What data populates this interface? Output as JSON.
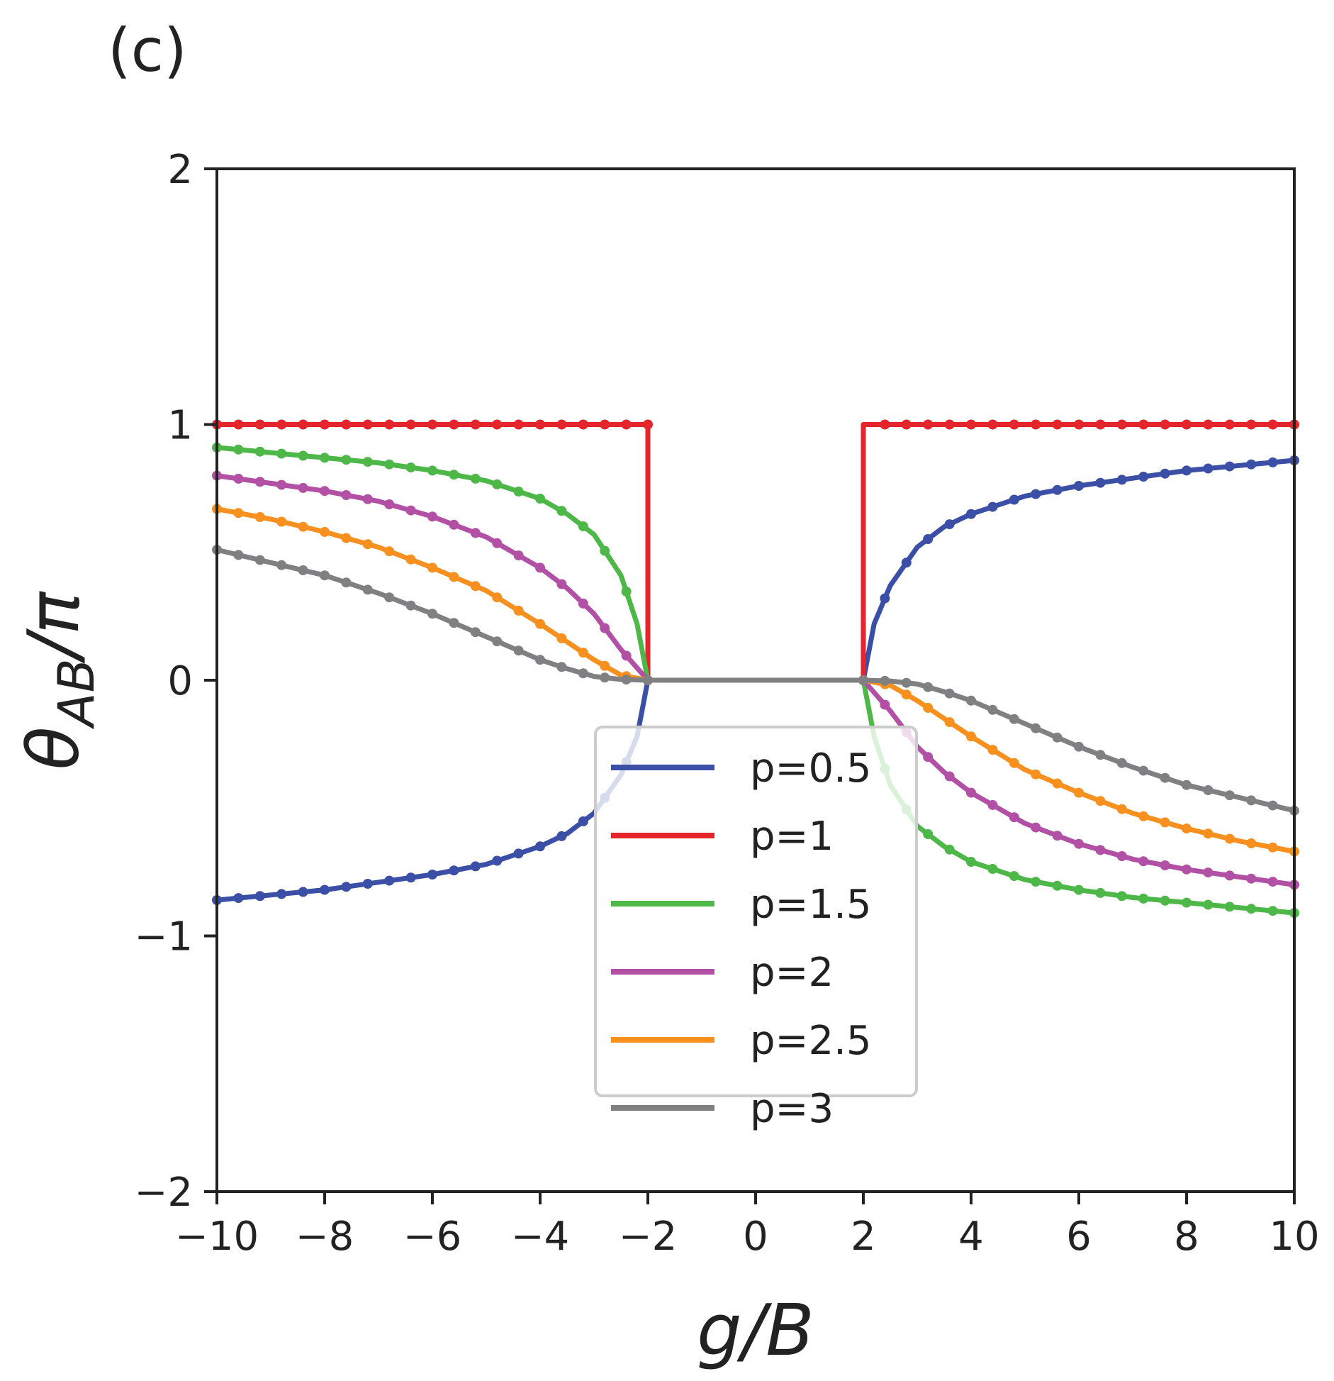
{
  "panel_label": "(c)",
  "chart_data": {
    "type": "line",
    "title": "",
    "xlabel": "g/B",
    "ylabel_main": "θ",
    "ylabel_sub": "AB",
    "ylabel_tail": "/π",
    "xlim": [
      -10,
      10
    ],
    "ylim": [
      -2,
      2
    ],
    "xticks": [
      -10,
      -8,
      -6,
      -4,
      -2,
      0,
      2,
      4,
      6,
      8,
      10
    ],
    "xtick_labels": [
      "−10",
      "−8",
      "−6",
      "−4",
      "−2",
      "0",
      "2",
      "4",
      "6",
      "8",
      "10"
    ],
    "yticks": [
      -2,
      -1,
      0,
      1,
      2
    ],
    "ytick_labels": [
      "−2",
      "−1",
      "0",
      "1",
      "2"
    ],
    "grid": false,
    "legend_position": "lower-center",
    "marker_step": 0.4,
    "series": [
      {
        "name": "p=0.5",
        "color": "#3a4fa5",
        "x": [
          -10,
          -9,
          -8,
          -7,
          -6,
          -5,
          -4,
          -3.5,
          -3,
          -2.5,
          -2.2,
          -2,
          2,
          2.2,
          2.5,
          3,
          3.5,
          4,
          5,
          6,
          7,
          8,
          9,
          10
        ],
        "y": [
          -0.86,
          -0.84,
          -0.82,
          -0.79,
          -0.76,
          -0.72,
          -0.65,
          -0.6,
          -0.52,
          -0.37,
          -0.22,
          0,
          0,
          0.22,
          0.37,
          0.52,
          0.6,
          0.65,
          0.72,
          0.76,
          0.79,
          0.82,
          0.84,
          0.86
        ]
      },
      {
        "name": "p=1",
        "color": "#e4262c",
        "x": [
          -10,
          -2,
          -2,
          2,
          2,
          10
        ],
        "y": [
          1,
          1,
          0,
          0,
          1,
          1
        ]
      },
      {
        "name": "p=1.5",
        "color": "#4db848",
        "x": [
          -10,
          -9,
          -8,
          -7,
          -6,
          -5,
          -4,
          -3.5,
          -3,
          -2.5,
          -2.2,
          -2,
          2,
          2.2,
          2.5,
          3,
          3.5,
          4,
          5,
          6,
          7,
          8,
          9,
          10
        ],
        "y": [
          0.91,
          0.89,
          0.87,
          0.85,
          0.82,
          0.78,
          0.71,
          0.65,
          0.57,
          0.41,
          0.22,
          0,
          0,
          -0.22,
          -0.41,
          -0.57,
          -0.65,
          -0.71,
          -0.78,
          -0.82,
          -0.85,
          -0.87,
          -0.89,
          -0.91
        ]
      },
      {
        "name": "p=2",
        "color": "#b150a4",
        "x": [
          -10,
          -9,
          -8,
          -7,
          -6,
          -5,
          -4,
          -3.5,
          -3,
          -2.5,
          -2,
          2,
          2.5,
          3,
          3.5,
          4,
          5,
          6,
          7,
          8,
          9,
          10
        ],
        "y": [
          0.8,
          0.77,
          0.74,
          0.7,
          0.64,
          0.56,
          0.44,
          0.36,
          0.26,
          0.12,
          0,
          0,
          -0.12,
          -0.26,
          -0.36,
          -0.44,
          -0.56,
          -0.64,
          -0.7,
          -0.74,
          -0.77,
          -0.8
        ]
      },
      {
        "name": "p=2.5",
        "color": "#f7901e",
        "x": [
          -10,
          -9,
          -8,
          -7,
          -6,
          -5,
          -4,
          -3.5,
          -3,
          -2.5,
          -2,
          2,
          2.5,
          3,
          3.5,
          4,
          5,
          6,
          7,
          8,
          9,
          10
        ],
        "y": [
          0.67,
          0.63,
          0.58,
          0.52,
          0.44,
          0.35,
          0.22,
          0.15,
          0.08,
          0.02,
          0,
          0,
          -0.02,
          -0.08,
          -0.15,
          -0.22,
          -0.35,
          -0.44,
          -0.52,
          -0.58,
          -0.63,
          -0.67
        ]
      },
      {
        "name": "p=3",
        "color": "#808083",
        "x": [
          -10,
          -9,
          -8,
          -7,
          -6,
          -5,
          -4,
          -3.5,
          -3,
          -2.5,
          -2,
          2,
          2.5,
          3,
          3.5,
          4,
          5,
          6,
          7,
          8,
          9,
          10
        ],
        "y": [
          0.51,
          0.46,
          0.41,
          0.34,
          0.26,
          0.17,
          0.08,
          0.045,
          0.015,
          0.003,
          0,
          0,
          -0.003,
          -0.015,
          -0.045,
          -0.08,
          -0.17,
          -0.26,
          -0.34,
          -0.41,
          -0.46,
          -0.51
        ]
      }
    ]
  }
}
